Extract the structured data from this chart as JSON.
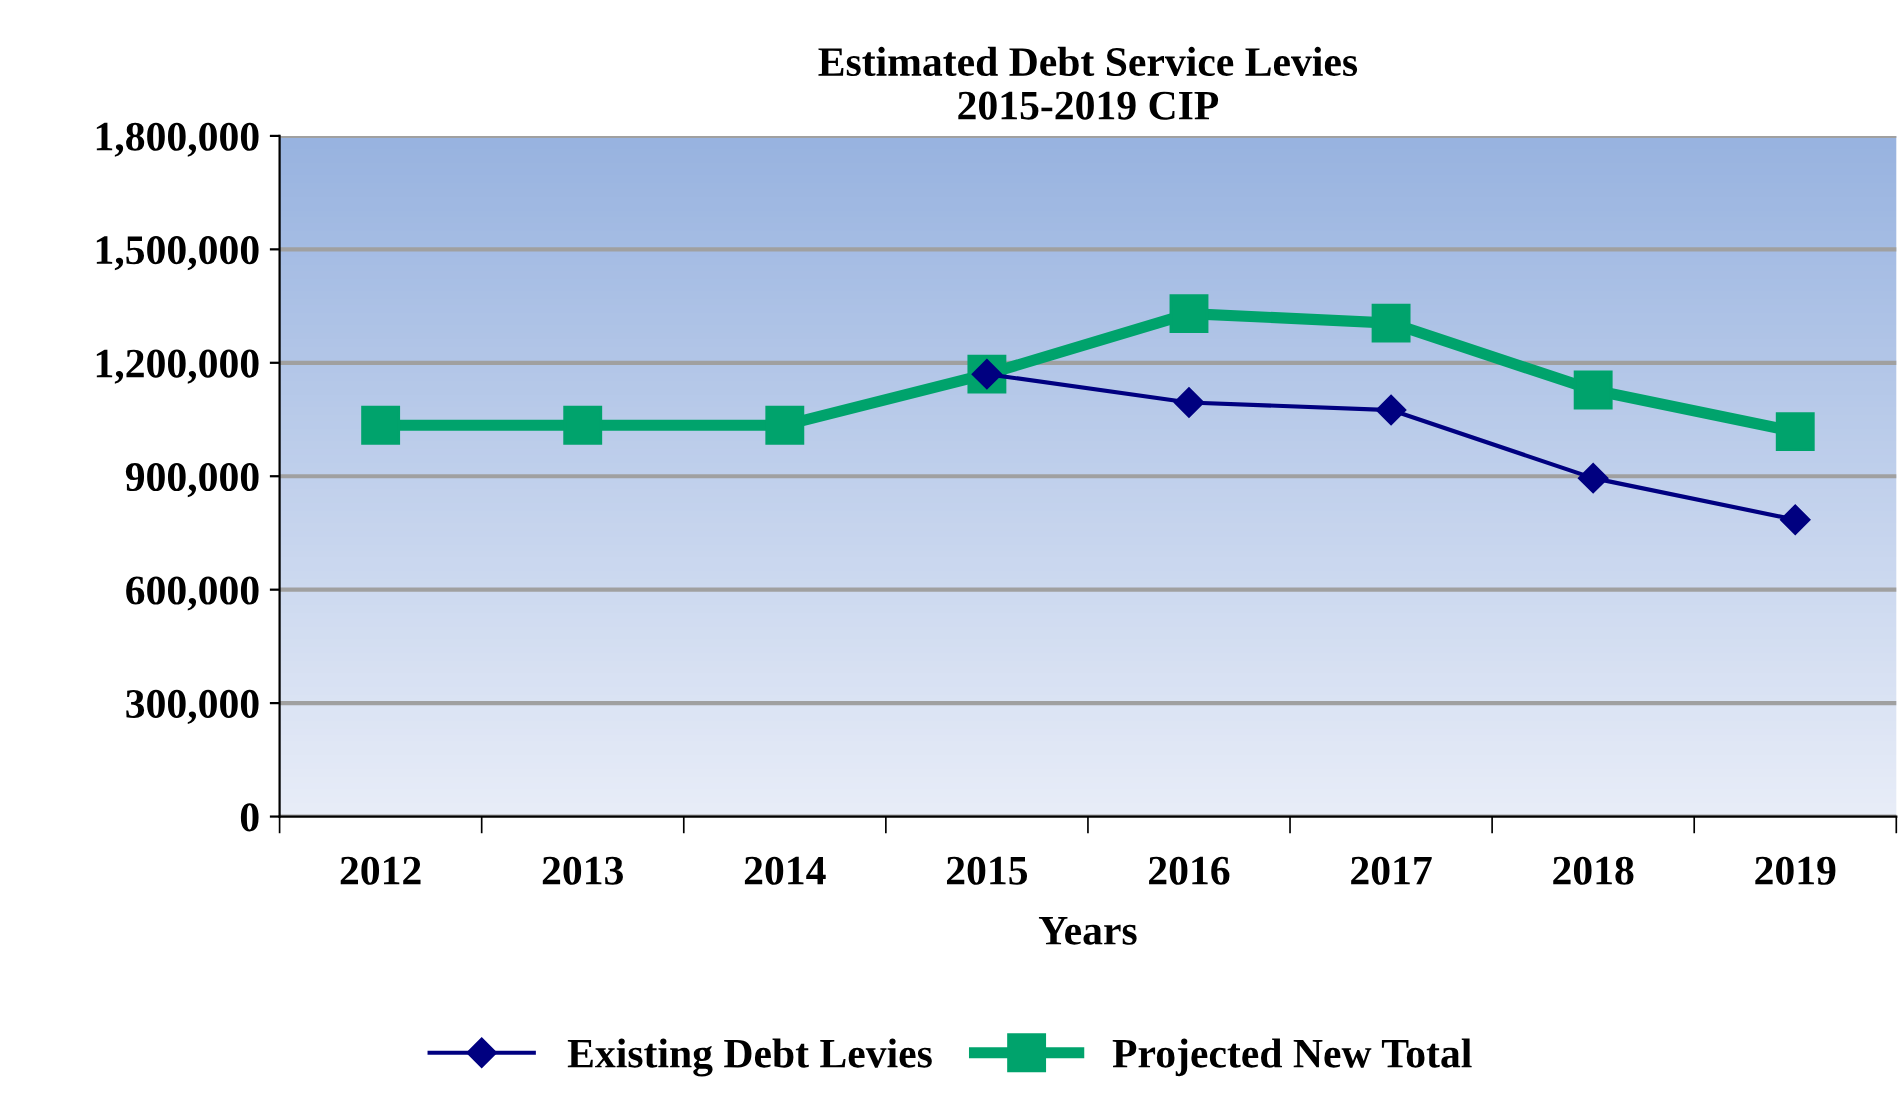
{
  "chart_data": {
    "type": "line",
    "title": "Estimated Debt Service Levies\n2015-2019 CIP",
    "xlabel": "Years",
    "categories": [
      "2012",
      "2013",
      "2014",
      "2015",
      "2016",
      "2017",
      "2018",
      "2019"
    ],
    "series": [
      {
        "name": "Existing Debt Levies",
        "color": "#000080",
        "marker": "diamond",
        "values": [
          null,
          null,
          null,
          1170000,
          1095000,
          1075000,
          895000,
          785000
        ]
      },
      {
        "name": "Projected New Total",
        "color": "#00a36c",
        "marker": "square",
        "values": [
          1035000,
          1035000,
          1035000,
          1170000,
          1330000,
          1305000,
          1128000,
          1018000
        ]
      }
    ],
    "ylim": [
      0,
      1800000
    ],
    "yticks": [
      0,
      {
        "value": 300000,
        "label": "300,000"
      },
      {
        "value": 600000,
        "label": "600,000"
      },
      {
        "value": 900000,
        "label": "900,000"
      },
      {
        "value": 1200000,
        "label": "1,200,000"
      },
      {
        "value": 1500000,
        "label": "1,500,000"
      },
      {
        "value": 1800000,
        "label": "1,800,000"
      }
    ],
    "grid": "y",
    "legend": "bottom",
    "line_style": "solid"
  }
}
